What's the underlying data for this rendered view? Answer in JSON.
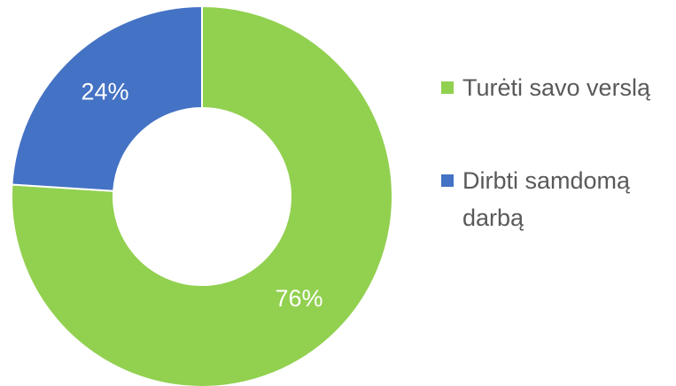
{
  "chart_data": {
    "type": "donut",
    "categories": [
      "Turėti savo verslą",
      "Dirbti samdomą darbą"
    ],
    "values": [
      76,
      24
    ],
    "value_labels": [
      "76%",
      "24%"
    ],
    "colors": [
      "#92d050",
      "#4472c4"
    ],
    "legend": "right"
  }
}
